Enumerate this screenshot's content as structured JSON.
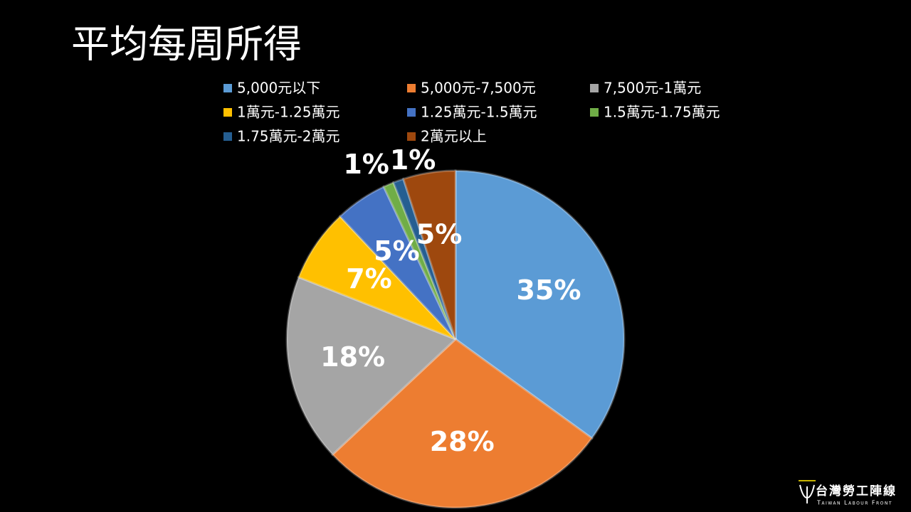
{
  "chart_data": {
    "type": "pie",
    "title": "平均每周所得",
    "categories": [
      "5,000元以下",
      "5,000元-7,500元",
      "7,500元-1萬元",
      "1萬元-1.25萬元",
      "1.25萬元-1.5萬元",
      "1.5萬元-1.75萬元",
      "1.75萬元-2萬元",
      "2萬元以上"
    ],
    "values": [
      35,
      28,
      18,
      7,
      5,
      1,
      1,
      5
    ],
    "value_labels": [
      "35%",
      "28%",
      "18%",
      "7%",
      "5%",
      "1%",
      "1%",
      "5%"
    ],
    "colors": [
      "#5b9bd5",
      "#ed7d31",
      "#a5a5a5",
      "#ffc000",
      "#4472c4",
      "#70ad47",
      "#255e91",
      "#9e480e"
    ],
    "legend": "top"
  },
  "logo": {
    "name": "台灣勞工陣線",
    "subtitle": "Taiwan Labour Front"
  }
}
